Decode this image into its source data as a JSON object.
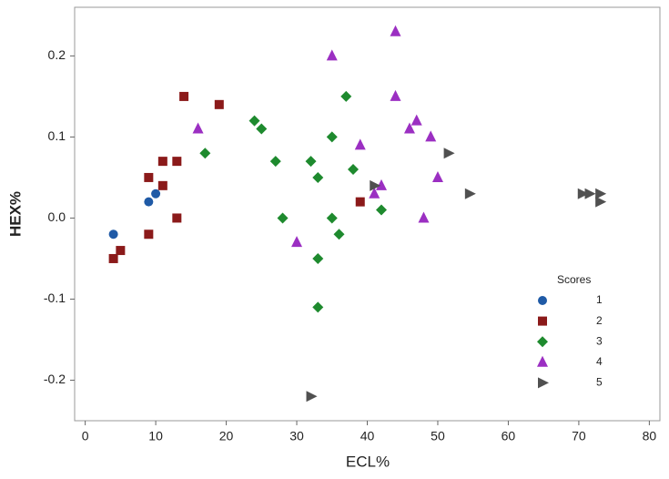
{
  "chart_data": {
    "type": "scatter",
    "x_label": "ECL%",
    "y_label": "HEX%",
    "xlim": [
      -1.5,
      81.5
    ],
    "ylim": [
      -0.25,
      0.26
    ],
    "xticks": [
      0,
      10,
      20,
      30,
      40,
      50,
      60,
      70,
      80
    ],
    "yticks": [
      -0.2,
      -0.1,
      {
        "value": 0,
        "label": "0.0"
      },
      0.1,
      0.2
    ],
    "legend_title": "Scores",
    "legend_position": "lower right",
    "series": [
      {
        "name": "1",
        "color": "#1f5aa6",
        "marker": "circle",
        "x": [
          4,
          9,
          10
        ],
        "values": [
          -0.02,
          0.02,
          0.03
        ]
      },
      {
        "name": "2",
        "color": "#8b1a1a",
        "marker": "square",
        "x": [
          4,
          5,
          9,
          9,
          11,
          11,
          13,
          13,
          14,
          19,
          39
        ],
        "values": [
          -0.05,
          -0.04,
          0.05,
          -0.02,
          0.07,
          0.04,
          0.07,
          0.0,
          0.15,
          0.14,
          0.02
        ]
      },
      {
        "name": "3",
        "color": "#1e8a2e",
        "marker": "diamond",
        "x": [
          17,
          24,
          25,
          27,
          28,
          32,
          33,
          33,
          33,
          35,
          35,
          36,
          37,
          38,
          42
        ],
        "values": [
          0.08,
          0.12,
          0.11,
          0.07,
          0.0,
          0.07,
          0.05,
          -0.05,
          -0.11,
          0.1,
          0.0,
          -0.02,
          0.15,
          0.06,
          0.01
        ]
      },
      {
        "name": "4",
        "color": "#9b2fc2",
        "marker": "triangle-up",
        "x": [
          16,
          30,
          35,
          39,
          41,
          42,
          44,
          44,
          46,
          47,
          48,
          49,
          50
        ],
        "values": [
          0.11,
          -0.03,
          0.2,
          0.09,
          0.03,
          0.04,
          0.23,
          0.15,
          0.11,
          0.12,
          0.0,
          0.1,
          0.05
        ]
      },
      {
        "name": "5",
        "color": "#505050",
        "marker": "triangle-right",
        "x": [
          32,
          41,
          51.5,
          54.5,
          70.5,
          71.5,
          73,
          73
        ],
        "values": [
          -0.22,
          0.04,
          0.08,
          0.03,
          0.03,
          0.03,
          0.03,
          0.02
        ]
      }
    ]
  }
}
